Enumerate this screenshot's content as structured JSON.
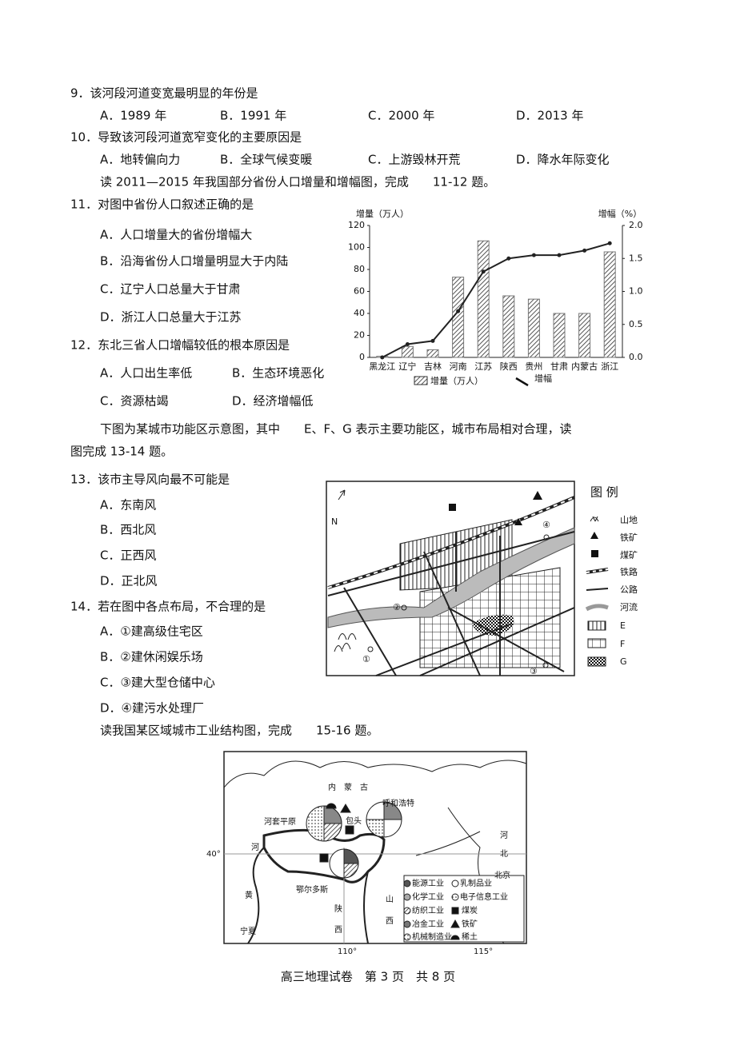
{
  "questions": [
    {
      "stem": "9．该河段河道变宽最明显的年份是",
      "options": [
        "A．1989 年",
        "B．1991 年",
        "C．2000 年",
        "D．2013 年"
      ]
    },
    {
      "stem": "10．导致该河段河道宽窄变化的主要原因是",
      "options": [
        "A．地转偏向力",
        "B．全球气候变暖",
        "C．上游毁林开荒",
        "D．降水年际变化"
      ]
    },
    {
      "stem": "11．对图中省份人口叙述正确的是",
      "options": [
        "A．人口增量大的省份增幅大",
        "B．沿海省份人口增量明显大于内陆",
        "C．辽宁人口总量大于甘肃",
        "D．浙江人口总量大于江苏"
      ]
    },
    {
      "stem": "12．东北三省人口增幅较低的根本原因是",
      "options": [
        "A．人口出生率低",
        "B．生态环境恶化",
        "C．资源枯竭",
        "D．经济增幅低"
      ]
    },
    {
      "stem": "13．该市主导风向最不可能是",
      "options": [
        "A．东南风",
        "B．西北风",
        "C．正西风",
        "D．正北风"
      ]
    },
    {
      "stem": "14．若在图中各点布局，不合理的是",
      "options": [
        "A．①建高级住宅区",
        "B．②建休闲娱乐场",
        "C．③建大型仓储中心",
        "D．④建污水处理厂"
      ]
    }
  ],
  "intros": [
    "读 2011—2015 年我国部分省份人口增量和增幅图，完成　　11-12 题。",
    "下图为某城市功能区示意图，其中　　E、F、G 表示主要功能区，城市布局相对合理，读",
    "图完成 13-14 题。",
    "读我国某区域城市工业结构图，完成　　15-16 题。"
  ],
  "chart": {
    "type": "bar",
    "y_title": "增量（万人）",
    "y2_title": "增幅（%）",
    "categories": [
      "黑龙江",
      "辽宁",
      "吉林",
      "河南",
      "江苏",
      "陕西",
      "贵州",
      "甘肃",
      "内蒙古",
      "浙江"
    ],
    "series": [
      {
        "name": "增量（万人）",
        "color": "#777",
        "values": [
          1,
          10,
          7,
          73,
          106,
          56,
          53,
          40,
          40,
          96
        ]
      },
      {
        "name": "增幅",
        "axis": "y2",
        "color": "#222",
        "values": [
          0.0,
          0.2,
          0.25,
          0.7,
          1.3,
          1.5,
          1.55,
          1.55,
          1.62,
          1.73
        ]
      }
    ],
    "ylim": [
      0,
      120
    ],
    "yticks": [
      0,
      20,
      40,
      60,
      80,
      100,
      120
    ],
    "y2lim": [
      0,
      2
    ],
    "y2ticks": [
      {
        "value": 0,
        "label": "0.0"
      },
      0.5,
      {
        "value": 1,
        "label": "1.0"
      },
      1.5,
      {
        "value": 2,
        "label": "2.0"
      }
    ]
  },
  "city_map": {
    "legend_title": "图 例",
    "legend": [
      "山地",
      "铁矿",
      "煤矿",
      "铁路",
      "公路",
      "河流",
      "E",
      "F",
      "G"
    ],
    "labels": [
      "N",
      "①",
      "②",
      "③",
      "④"
    ]
  },
  "region_map": {
    "labels": [
      "内　蒙　古",
      "呼和浩特",
      "河套平原",
      "包头",
      "河",
      "北",
      "北京",
      "40°",
      "鄂尔多斯",
      "山",
      "西",
      "陕",
      "西",
      "宁夏",
      "110°",
      "115°",
      "河",
      "黄"
    ],
    "legend": [
      "能源工业",
      "乳制品业",
      "化学工业",
      "电子信息工业",
      "纺织工业",
      "煤炭",
      "冶金工业",
      "铁矿",
      "机械制造业",
      "稀土"
    ]
  },
  "footer": "高三地理试卷　第 3 页　共 8 页"
}
